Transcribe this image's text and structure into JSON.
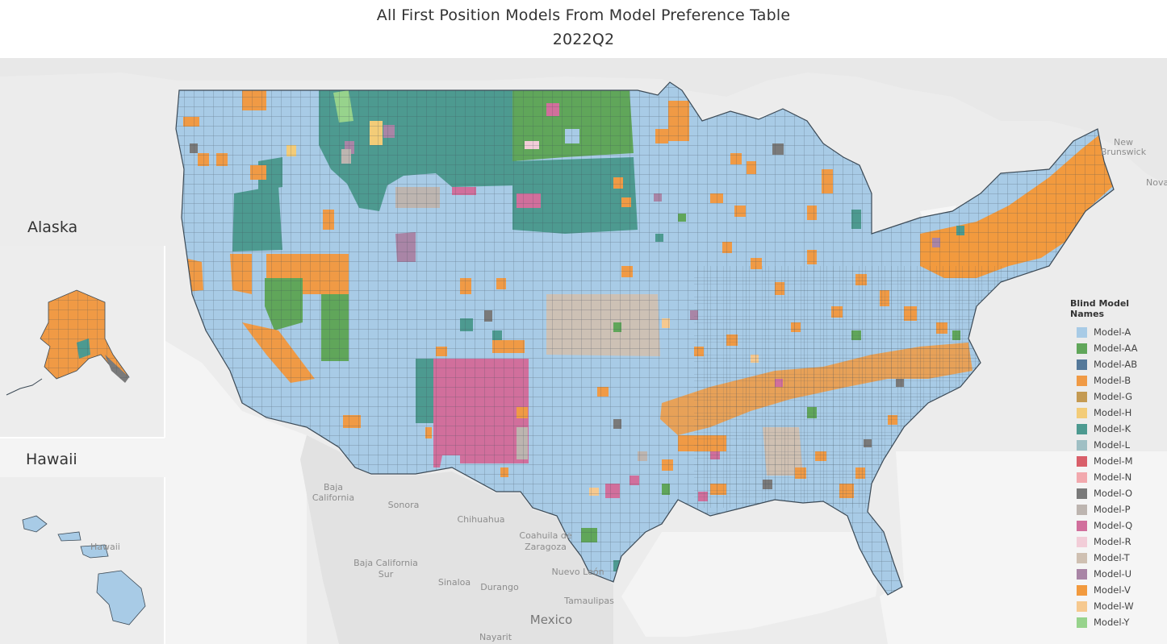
{
  "title": "All First Position Models From Model Preference Table",
  "subtitle": "2022Q2",
  "insets": {
    "alaska": "Alaska",
    "hawaii": "Hawaii"
  },
  "legend": {
    "title": "Blind Model Names",
    "items": [
      {
        "label": "Model-A",
        "color": "#a8cbe6"
      },
      {
        "label": "Model-AA",
        "color": "#60a65a"
      },
      {
        "label": "Model-AB",
        "color": "#55799a"
      },
      {
        "label": "Model-B",
        "color": "#f09a45"
      },
      {
        "label": "Model-G",
        "color": "#c49a52"
      },
      {
        "label": "Model-H",
        "color": "#f3cc78"
      },
      {
        "label": "Model-K",
        "color": "#4d9a90"
      },
      {
        "label": "Model-L",
        "color": "#9fbfc4"
      },
      {
        "label": "Model-M",
        "color": "#d95f6a"
      },
      {
        "label": "Model-N",
        "color": "#f2a9ae"
      },
      {
        "label": "Model-O",
        "color": "#7a7a7a"
      },
      {
        "label": "Model-P",
        "color": "#bdb5b0"
      },
      {
        "label": "Model-Q",
        "color": "#d16f9c"
      },
      {
        "label": "Model-R",
        "color": "#f2cdd8"
      },
      {
        "label": "Model-T",
        "color": "#cfc0b2"
      },
      {
        "label": "Model-U",
        "color": "#a985a6"
      },
      {
        "label": "Model-V",
        "color": "#f29a3e"
      },
      {
        "label": "Model-W",
        "color": "#f6c98f"
      },
      {
        "label": "Model-Y",
        "color": "#97d38c"
      }
    ]
  },
  "map_labels": {
    "new_brunswick_1": "New",
    "new_brunswick_2": "Brunswick",
    "nova": "Nova",
    "baja_california_1": "Baja",
    "baja_california_2": "California",
    "baja_california_sur_1": "Baja California",
    "baja_california_sur_2": "Sur",
    "sonora": "Sonora",
    "chihuahua": "Chihuahua",
    "coahuila_1": "Coahuila de",
    "coahuila_2": "Zaragoza",
    "sinaloa": "Sinaloa",
    "durango": "Durango",
    "nuevo_leon": "Nuevo León",
    "tamaulipas": "Tamaulipas",
    "mexico": "Mexico",
    "nayarit": "Nayarit",
    "hawaii_faint": "Hawaii"
  },
  "colors": {
    "model_a": "#a8cbe6",
    "land_gray": "#e6e6e6",
    "water": "#f2f2f2",
    "county_border": "#3c4a56"
  }
}
